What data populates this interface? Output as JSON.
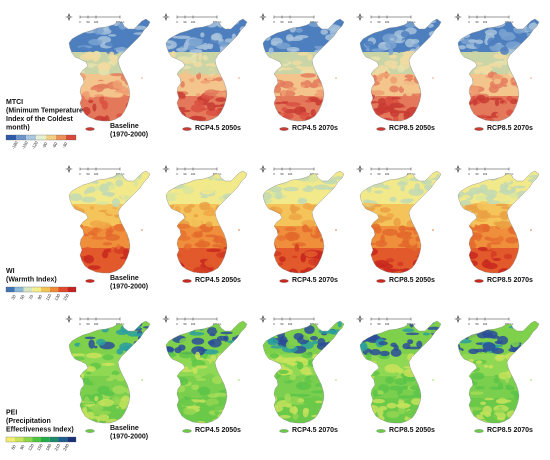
{
  "rows": [
    {
      "index_label_lines": [
        "MTCI",
        "(Minimum Temperature",
        "Index of the Coldest",
        "month)"
      ],
      "legend_ticks": [
        "-180",
        "-150",
        "-120",
        "-90",
        "-60",
        "-30"
      ],
      "legend_colors": [
        "#2c5aa8",
        "#6b95c9",
        "#a9c7df",
        "#e6efcf",
        "#f3cf83",
        "#ec9157",
        "#d7493a"
      ],
      "maps": [
        {
          "scenario": "Baseline",
          "period": "(1970-2000)"
        },
        {
          "scenario": "RCP4.5 2050s",
          "period": ""
        },
        {
          "scenario": "RCP4.5 2070s",
          "period": ""
        },
        {
          "scenario": "RCP8.5 2050s",
          "period": ""
        },
        {
          "scenario": "RCP8.5 2070s",
          "period": ""
        }
      ]
    },
    {
      "index_label_lines": [
        "WI",
        "(Warmth Index)"
      ],
      "legend_ticks": [
        "30",
        "50",
        "70",
        "90",
        "110",
        "130",
        "150"
      ],
      "legend_colors": [
        "#3f74b5",
        "#8cb7d5",
        "#d5e6c0",
        "#f4ee8e",
        "#f4c552",
        "#ef8a36",
        "#e2482a",
        "#c8201e"
      ],
      "maps": [
        {
          "scenario": "Baseline",
          "period": "(1970-2000)"
        },
        {
          "scenario": "RCP4.5 2050s",
          "period": ""
        },
        {
          "scenario": "RCP4.5 2070s",
          "period": ""
        },
        {
          "scenario": "RCP8.5 2050s",
          "period": ""
        },
        {
          "scenario": "RCP8.5 2070s",
          "period": ""
        }
      ]
    },
    {
      "index_label_lines": [
        "PEI",
        "(Precipitation",
        "Effectiveness Index)"
      ],
      "legend_ticks": [
        "60",
        "90",
        "120",
        "150",
        "180",
        "210",
        "240"
      ],
      "legend_colors": [
        "#f4ee6e",
        "#c9e35a",
        "#8fd64c",
        "#4fc53e",
        "#23ad4a",
        "#1f8b6a",
        "#1d5f8f",
        "#18317a"
      ],
      "maps": [
        {
          "scenario": "Baseline",
          "period": "(1970-2000)"
        },
        {
          "scenario": "RCP4.5 2050s",
          "period": ""
        },
        {
          "scenario": "RCP4.5 2070s",
          "period": ""
        },
        {
          "scenario": "RCP8.5 2050s",
          "period": ""
        },
        {
          "scenario": "RCP8.5 2070s",
          "period": ""
        }
      ]
    }
  ],
  "scale_bar_text": [
    "0",
    "50",
    "100",
    "200 km"
  ],
  "palettes": {
    "mtci": [
      [
        "#4d7fbf",
        "#7aa2d0",
        "#a7c2dc"
      ],
      [
        "#c9d5a6",
        "#e6e3ae",
        "#f1dba0"
      ],
      [
        "#f3c48c",
        "#ee9f72",
        "#e37b5c"
      ],
      [
        "#e4785a",
        "#d95042",
        "#c83b32"
      ]
    ],
    "wi": [
      [
        "#f2e98a",
        "#d9e59c",
        "#c2d9b3"
      ],
      [
        "#f4c45a",
        "#f0a847",
        "#eaa043"
      ],
      [
        "#ef8f3c",
        "#e8732f",
        "#e36a2c"
      ],
      [
        "#e25a2b",
        "#d23b22",
        "#c8281e"
      ]
    ],
    "pei": [
      [
        "#7fd04a",
        "#2a9fa0",
        "#2a4d9a"
      ],
      [
        "#8ed854",
        "#5fc747",
        "#c9e35a"
      ],
      [
        "#7bcf4e",
        "#a5dc58",
        "#5bc449"
      ],
      [
        "#6bc94a",
        "#92d651",
        "#c3e25a"
      ]
    ]
  }
}
